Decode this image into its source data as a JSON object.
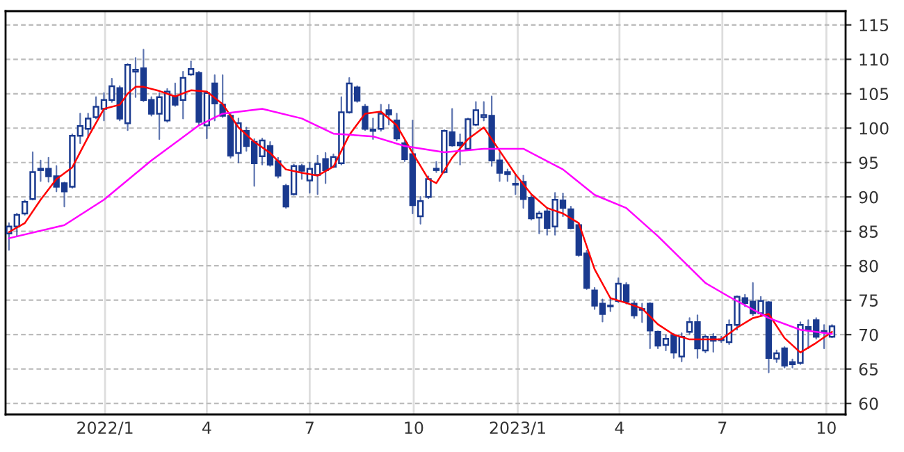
{
  "chart_data": {
    "type": "candlestick",
    "color": "#1a3a8f",
    "grid": true,
    "x": [
      "2021-10-08",
      "2021-10-15",
      "2021-10-22",
      "2021-10-29",
      "2021-11-05",
      "2021-11-12",
      "2021-11-19",
      "2021-11-26",
      "2021-12-03",
      "2021-12-10",
      "2021-12-17",
      "2021-12-24",
      "2021-12-31",
      "2022-01-07",
      "2022-01-14",
      "2022-01-21",
      "2022-01-28",
      "2022-02-04",
      "2022-02-11",
      "2022-02-18",
      "2022-02-25",
      "2022-03-04",
      "2022-03-11",
      "2022-03-18",
      "2022-03-25",
      "2022-04-01",
      "2022-04-08",
      "2022-04-15",
      "2022-04-22",
      "2022-04-29",
      "2022-05-06",
      "2022-05-13",
      "2022-05-20",
      "2022-05-27",
      "2022-06-03",
      "2022-06-10",
      "2022-06-17",
      "2022-06-24",
      "2022-07-01",
      "2022-07-08",
      "2022-07-15",
      "2022-07-22",
      "2022-07-29",
      "2022-08-05",
      "2022-08-12",
      "2022-08-19",
      "2022-08-26",
      "2022-09-02",
      "2022-09-09",
      "2022-09-16",
      "2022-09-23",
      "2022-09-30",
      "2022-10-07",
      "2022-10-14",
      "2022-10-21",
      "2022-10-28",
      "2022-11-04",
      "2022-11-11",
      "2022-11-18",
      "2022-11-25",
      "2022-12-02",
      "2022-12-09",
      "2022-12-16",
      "2022-12-23",
      "2022-12-30",
      "2023-01-06",
      "2023-01-13",
      "2023-01-20",
      "2023-01-27",
      "2023-02-03",
      "2023-02-10",
      "2023-02-17",
      "2023-02-24",
      "2023-03-03",
      "2023-03-10",
      "2023-03-17",
      "2023-03-24",
      "2023-03-31",
      "2023-04-07",
      "2023-04-14",
      "2023-04-21",
      "2023-04-28",
      "2023-05-05",
      "2023-05-12",
      "2023-05-19",
      "2023-05-26",
      "2023-06-02",
      "2023-06-09",
      "2023-06-16",
      "2023-06-23",
      "2023-06-30",
      "2023-07-07",
      "2023-07-14",
      "2023-07-21",
      "2023-07-28",
      "2023-08-04",
      "2023-08-11",
      "2023-08-18",
      "2023-08-25",
      "2023-09-01",
      "2023-09-08",
      "2023-09-15",
      "2023-09-22",
      "2023-09-29",
      "2023-10-06"
    ],
    "ohlc": [
      [
        84.7,
        86.2,
        82.3,
        85.7
      ],
      [
        85.7,
        87.6,
        84.3,
        87.4
      ],
      [
        87.6,
        89.5,
        87.4,
        89.3
      ],
      [
        89.7,
        96.5,
        89.6,
        93.6
      ],
      [
        93.9,
        95.3,
        92.3,
        94.1
      ],
      [
        94.1,
        95.7,
        92.2,
        93.0
      ],
      [
        93.0,
        94.5,
        90.8,
        91.5
      ],
      [
        92.0,
        92.1,
        88.6,
        90.8
      ],
      [
        91.5,
        99.1,
        91.3,
        98.9
      ],
      [
        98.9,
        102.1,
        97.8,
        100.3
      ],
      [
        99.9,
        102.1,
        98.6,
        101.4
      ],
      [
        101.6,
        104.5,
        101.4,
        103.1
      ],
      [
        102.8,
        105.1,
        101.1,
        104.1
      ],
      [
        104.1,
        107.2,
        103.8,
        106.1
      ],
      [
        105.8,
        106.1,
        101.1,
        101.4
      ],
      [
        100.7,
        109.3,
        99.7,
        109.2
      ],
      [
        108.2,
        110.2,
        104.5,
        108.5
      ],
      [
        108.7,
        111.4,
        103.9,
        104.1
      ],
      [
        104.1,
        104.5,
        101.8,
        102.1
      ],
      [
        102.1,
        105.1,
        98.4,
        104.5
      ],
      [
        101.1,
        105.7,
        100.9,
        105.3
      ],
      [
        104.6,
        106.5,
        103.2,
        103.4
      ],
      [
        104.1,
        108.2,
        101.4,
        107.3
      ],
      [
        107.8,
        109.7,
        107.7,
        108.6
      ],
      [
        108.0,
        108.2,
        100.4,
        100.9
      ],
      [
        100.4,
        105.3,
        98.5,
        105.1
      ],
      [
        106.5,
        107.7,
        101.1,
        103.6
      ],
      [
        103.4,
        107.7,
        101.6,
        101.8
      ],
      [
        101.8,
        102.1,
        95.7,
        96.0
      ],
      [
        96.4,
        101.4,
        95.0,
        100.7
      ],
      [
        99.6,
        100.1,
        96.7,
        97.4
      ],
      [
        98.0,
        98.4,
        91.6,
        94.9
      ],
      [
        95.9,
        98.5,
        94.7,
        98.2
      ],
      [
        97.4,
        98.0,
        94.5,
        94.7
      ],
      [
        95.2,
        95.7,
        92.8,
        93.1
      ],
      [
        91.6,
        91.8,
        88.4,
        88.6
      ],
      [
        90.4,
        94.7,
        90.3,
        94.5
      ],
      [
        94.5,
        94.7,
        92.6,
        93.8
      ],
      [
        92.4,
        95.0,
        90.6,
        94.1
      ],
      [
        93.2,
        96.0,
        90.4,
        94.8
      ],
      [
        95.5,
        96.4,
        92.0,
        93.9
      ],
      [
        94.4,
        96.2,
        94.3,
        95.8
      ],
      [
        94.9,
        104.5,
        94.7,
        102.3
      ],
      [
        102.3,
        107.3,
        102.2,
        106.5
      ],
      [
        105.9,
        106.1,
        103.8,
        104.0
      ],
      [
        103.1,
        103.4,
        99.7,
        99.9
      ],
      [
        99.6,
        101.4,
        98.4,
        99.8
      ],
      [
        99.9,
        103.4,
        99.6,
        102.1
      ],
      [
        102.6,
        103.4,
        100.5,
        102.0
      ],
      [
        101.1,
        102.1,
        98.2,
        98.5
      ],
      [
        97.8,
        98.2,
        95.2,
        95.5
      ],
      [
        96.2,
        101.1,
        87.6,
        88.8
      ],
      [
        87.2,
        90.0,
        86.1,
        89.4
      ],
      [
        90.0,
        93.0,
        89.8,
        92.6
      ],
      [
        94.1,
        95.1,
        93.6,
        93.9
      ],
      [
        93.6,
        99.7,
        93.5,
        99.6
      ],
      [
        99.4,
        102.8,
        97.4,
        97.5
      ],
      [
        97.9,
        99.1,
        94.7,
        97.5
      ],
      [
        97.0,
        101.4,
        96.8,
        101.3
      ],
      [
        100.5,
        103.8,
        100.4,
        102.6
      ],
      [
        101.6,
        103.8,
        101.1,
        101.9
      ],
      [
        101.8,
        104.6,
        94.5,
        95.3
      ],
      [
        95.3,
        96.4,
        92.3,
        93.5
      ],
      [
        93.6,
        94.0,
        92.3,
        93.3
      ],
      [
        91.9,
        93.3,
        90.4,
        91.8
      ],
      [
        92.2,
        93.1,
        88.4,
        89.7
      ],
      [
        89.9,
        90.3,
        86.7,
        86.9
      ],
      [
        87.0,
        87.9,
        84.7,
        87.6
      ],
      [
        87.9,
        88.4,
        84.5,
        85.5
      ],
      [
        85.7,
        90.6,
        84.5,
        89.6
      ],
      [
        89.5,
        90.5,
        87.2,
        88.4
      ],
      [
        88.2,
        88.6,
        85.4,
        85.5
      ],
      [
        85.9,
        86.2,
        81.4,
        81.6
      ],
      [
        81.8,
        82.2,
        76.6,
        76.8
      ],
      [
        76.4,
        76.8,
        73.7,
        74.2
      ],
      [
        74.5,
        75.1,
        71.9,
        73.0
      ],
      [
        74.2,
        75.4,
        73.4,
        74.1
      ],
      [
        74.9,
        78.2,
        74.7,
        77.4
      ],
      [
        77.2,
        77.5,
        74.5,
        74.8
      ],
      [
        74.5,
        74.8,
        72.4,
        72.8
      ],
      [
        73.7,
        74.5,
        71.8,
        73.6
      ],
      [
        74.5,
        74.6,
        68.0,
        70.6
      ],
      [
        70.4,
        70.5,
        68.0,
        68.4
      ],
      [
        68.5,
        69.9,
        67.7,
        69.4
      ],
      [
        69.9,
        70.1,
        66.6,
        67.4
      ],
      [
        66.8,
        70.2,
        66.1,
        69.7
      ],
      [
        70.4,
        72.4,
        70.1,
        71.8
      ],
      [
        71.8,
        72.8,
        66.6,
        68.0
      ],
      [
        67.7,
        69.9,
        67.4,
        69.7
      ],
      [
        69.7,
        70.1,
        67.5,
        69.1
      ],
      [
        69.3,
        69.7,
        68.9,
        69.2
      ],
      [
        68.9,
        72.1,
        68.6,
        71.4
      ],
      [
        71.4,
        75.6,
        70.7,
        75.5
      ],
      [
        75.3,
        75.8,
        74.1,
        74.6
      ],
      [
        74.8,
        77.5,
        72.8,
        73.1
      ],
      [
        73.1,
        75.5,
        72.8,
        74.9
      ],
      [
        74.7,
        74.8,
        64.5,
        66.6
      ],
      [
        66.5,
        67.7,
        66.0,
        67.3
      ],
      [
        68.0,
        68.2,
        65.2,
        65.5
      ],
      [
        66.0,
        66.4,
        65.2,
        65.7
      ],
      [
        65.9,
        71.8,
        65.7,
        71.4
      ],
      [
        71.1,
        72.1,
        68.0,
        70.7
      ],
      [
        72.1,
        72.4,
        69.4,
        69.7
      ],
      [
        70.5,
        71.4,
        68.0,
        70.4
      ],
      [
        69.7,
        71.4,
        69.6,
        71.2
      ]
    ],
    "series": [
      {
        "type": "line",
        "color": "#ff0000",
        "x": [
          "2021-10-08",
          "2021-10-22",
          "2021-11-05",
          "2021-11-19",
          "2021-12-03",
          "2021-12-17",
          "2021-12-31",
          "2022-01-14",
          "2022-01-21",
          "2022-01-28",
          "2022-02-04",
          "2022-02-18",
          "2022-03-04",
          "2022-03-18",
          "2022-04-01",
          "2022-04-15",
          "2022-04-29",
          "2022-05-13",
          "2022-05-27",
          "2022-06-10",
          "2022-06-24",
          "2022-07-08",
          "2022-07-22",
          "2022-08-05",
          "2022-08-19",
          "2022-09-02",
          "2022-09-16",
          "2022-09-30",
          "2022-10-14",
          "2022-10-21",
          "2022-11-04",
          "2022-11-18",
          "2022-12-02",
          "2022-12-16",
          "2022-12-30",
          "2023-01-13",
          "2023-01-27",
          "2023-02-10",
          "2023-02-24",
          "2023-03-10",
          "2023-03-24",
          "2023-04-07",
          "2023-04-21",
          "2023-05-05",
          "2023-05-19",
          "2023-06-02",
          "2023-06-16",
          "2023-06-30",
          "2023-07-14",
          "2023-07-28",
          "2023-08-11",
          "2023-08-25",
          "2023-09-08",
          "2023-09-22",
          "2023-10-06"
        ],
        "values": [
          84.9,
          86.2,
          89.6,
          92.6,
          94.3,
          98.7,
          102.8,
          103.4,
          105,
          106,
          106,
          105.4,
          104.6,
          105.5,
          105.3,
          103.5,
          100.1,
          98,
          96.4,
          94,
          93.5,
          93.1,
          94.4,
          99,
          102.1,
          102.4,
          100.4,
          96.4,
          92.6,
          92,
          95.7,
          98.4,
          100.1,
          96.7,
          93.3,
          90.4,
          88.4,
          87.6,
          86.2,
          79.5,
          75.3,
          74.6,
          73.8,
          71.5,
          70,
          69.3,
          69.3,
          69.3,
          71,
          72.4,
          73,
          69.5,
          67.4,
          68.8,
          70.4
        ]
      },
      {
        "type": "line",
        "color": "#ff00ff",
        "x": [
          "2021-10-08",
          "2021-11-26",
          "2021-12-31",
          "2022-02-11",
          "2022-03-25",
          "2022-04-15",
          "2022-05-20",
          "2022-06-24",
          "2022-07-22",
          "2022-08-26",
          "2022-09-23",
          "2022-10-28",
          "2022-12-02",
          "2023-01-06",
          "2023-02-10",
          "2023-03-10",
          "2023-04-07",
          "2023-05-05",
          "2023-06-16",
          "2023-07-07",
          "2023-08-11",
          "2023-09-08",
          "2023-10-06"
        ],
        "values": [
          84,
          85.9,
          89.6,
          95.3,
          100.4,
          102.1,
          102.8,
          101.4,
          99.2,
          98.8,
          97.4,
          96.5,
          97,
          97,
          94,
          90.3,
          88.4,
          84.3,
          77.5,
          75.5,
          72.4,
          70.7,
          70.1
        ]
      }
    ],
    "xlim": [
      "2021-10-05",
      "2023-10-18"
    ],
    "xticks": [
      {
        "value": "2022-01-01",
        "label": "2022/1"
      },
      {
        "value": "2022-04-01",
        "label": "4"
      },
      {
        "value": "2022-07-01",
        "label": "7"
      },
      {
        "value": "2022-10-01",
        "label": "10"
      },
      {
        "value": "2023-01-01",
        "label": "2023/1"
      },
      {
        "value": "2023-04-01",
        "label": "4"
      },
      {
        "value": "2023-07-01",
        "label": "7"
      },
      {
        "value": "2023-10-01",
        "label": "10"
      }
    ],
    "ylim": [
      58.4,
      117
    ],
    "yticks": [
      60,
      65,
      70,
      75,
      80,
      85,
      90,
      95,
      100,
      105,
      110,
      115
    ]
  }
}
